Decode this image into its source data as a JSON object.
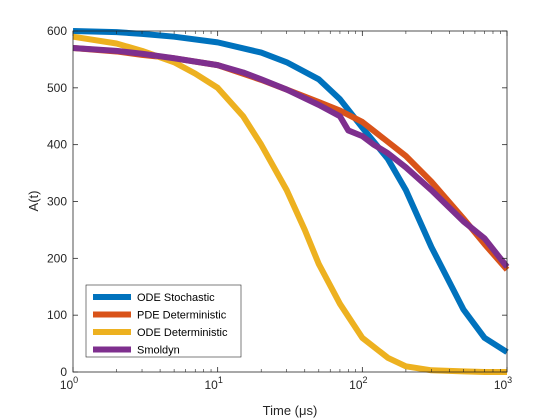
{
  "chart_data": {
    "type": "line",
    "xlabel": "Time (μs)",
    "ylabel": "A(t)",
    "xscale": "log",
    "xlim": [
      1,
      1000
    ],
    "ylim": [
      0,
      600
    ],
    "grid": false,
    "legend_placement": "bottom-left",
    "x_ticks": [
      {
        "base": "10",
        "exp": "0",
        "value": 1
      },
      {
        "base": "10",
        "exp": "1",
        "value": 10
      },
      {
        "base": "10",
        "exp": "2",
        "value": 100
      },
      {
        "base": "10",
        "exp": "3",
        "value": 1000
      }
    ],
    "y_ticks": [
      {
        "label": "0",
        "value": 0
      },
      {
        "label": "100",
        "value": 100
      },
      {
        "label": "200",
        "value": 200
      },
      {
        "label": "300",
        "value": 300
      },
      {
        "label": "400",
        "value": 400
      },
      {
        "label": "500",
        "value": 500
      },
      {
        "label": "600",
        "value": 600
      }
    ],
    "series": [
      {
        "name": "ODE Stochastic",
        "color": "#0072BD",
        "x": [
          1,
          2,
          3,
          5,
          10,
          20,
          30,
          50,
          70,
          100,
          150,
          200,
          300,
          500,
          700,
          1000
        ],
        "y": [
          600,
          598,
          595,
          590,
          580,
          562,
          545,
          515,
          480,
          430,
          375,
          320,
          220,
          110,
          60,
          35
        ]
      },
      {
        "name": "PDE Deterministic",
        "color": "#D95319",
        "x": [
          1,
          2,
          3,
          5,
          10,
          20,
          30,
          50,
          70,
          100,
          150,
          200,
          300,
          500,
          700,
          1000
        ],
        "y": [
          570,
          564,
          558,
          552,
          540,
          514,
          497,
          475,
          460,
          440,
          405,
          380,
          335,
          270,
          225,
          180
        ]
      },
      {
        "name": "ODE Deterministic",
        "color": "#EDB120",
        "x": [
          1,
          2,
          3,
          5,
          7,
          10,
          15,
          20,
          30,
          40,
          50,
          70,
          100,
          150,
          200,
          300,
          500,
          700,
          1000
        ],
        "y": [
          590,
          578,
          565,
          545,
          525,
          500,
          450,
          400,
          320,
          250,
          190,
          120,
          60,
          25,
          10,
          3,
          1,
          0,
          0
        ]
      },
      {
        "name": "Smoldyn",
        "color": "#7E2F8E",
        "x": [
          1,
          2,
          3,
          5,
          10,
          15,
          20,
          30,
          50,
          70,
          80,
          100,
          120,
          150,
          200,
          300,
          500,
          700,
          1000
        ],
        "y": [
          570,
          565,
          560,
          552,
          540,
          527,
          515,
          497,
          470,
          450,
          425,
          415,
          400,
          385,
          360,
          320,
          265,
          235,
          185
        ]
      }
    ]
  }
}
